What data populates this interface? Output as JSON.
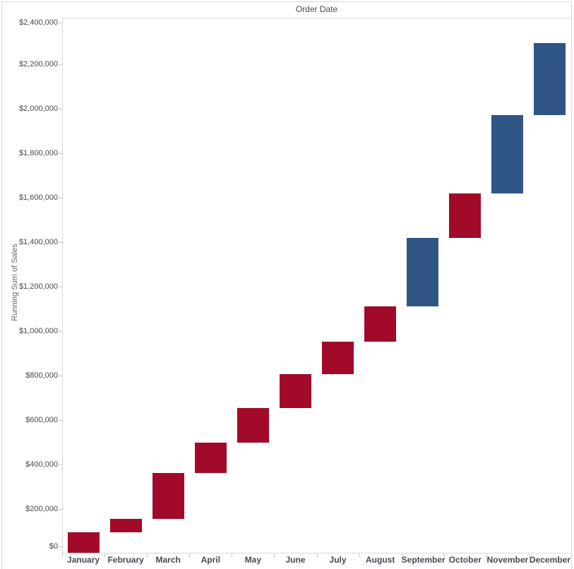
{
  "header": {
    "title": "Order Date"
  },
  "y_axis": {
    "title": "Running Sum of Sales"
  },
  "chart_data": {
    "type": "waterfall",
    "title": "Order Date",
    "xlabel": "Order Date (Month)",
    "ylabel": "Running Sum of Sales",
    "ylim": [
      0,
      2400000
    ],
    "ytick_step": 200000,
    "grid": "off",
    "legend": "none",
    "ytick_labels": [
      "$0",
      "$200,000",
      "$400,000",
      "$600,000",
      "$800,000",
      "$1,000,000",
      "$1,200,000",
      "$1,400,000",
      "$1,600,000",
      "$1,800,000",
      "$2,000,000",
      "$2,200,000",
      "$2,400,000"
    ],
    "categories": [
      "January",
      "February",
      "March",
      "April",
      "May",
      "June",
      "July",
      "August",
      "September",
      "October",
      "November",
      "December"
    ],
    "palette": {
      "red": "#A10A28",
      "blue": "#2F5585"
    },
    "points": [
      {
        "month": "January",
        "sales": 95000,
        "running_start": 0,
        "running_end": 95000,
        "color": "red"
      },
      {
        "month": "February",
        "sales": 60000,
        "running_start": 95000,
        "running_end": 155000,
        "color": "red"
      },
      {
        "month": "March",
        "sales": 205000,
        "running_start": 155000,
        "running_end": 360000,
        "color": "red"
      },
      {
        "month": "April",
        "sales": 137000,
        "running_start": 360000,
        "running_end": 497000,
        "color": "red"
      },
      {
        "month": "May",
        "sales": 155000,
        "running_start": 497000,
        "running_end": 652000,
        "color": "red"
      },
      {
        "month": "June",
        "sales": 153000,
        "running_start": 652000,
        "running_end": 805000,
        "color": "red"
      },
      {
        "month": "July",
        "sales": 147000,
        "running_start": 805000,
        "running_end": 952000,
        "color": "red"
      },
      {
        "month": "August",
        "sales": 159000,
        "running_start": 952000,
        "running_end": 1111000,
        "color": "red"
      },
      {
        "month": "September",
        "sales": 308000,
        "running_start": 1111000,
        "running_end": 1419000,
        "color": "blue"
      },
      {
        "month": "October",
        "sales": 200000,
        "running_start": 1419000,
        "running_end": 1619000,
        "color": "red"
      },
      {
        "month": "November",
        "sales": 353000,
        "running_start": 1619000,
        "running_end": 1972000,
        "color": "blue"
      },
      {
        "month": "December",
        "sales": 325000,
        "running_start": 1972000,
        "running_end": 2297000,
        "color": "blue"
      }
    ]
  }
}
